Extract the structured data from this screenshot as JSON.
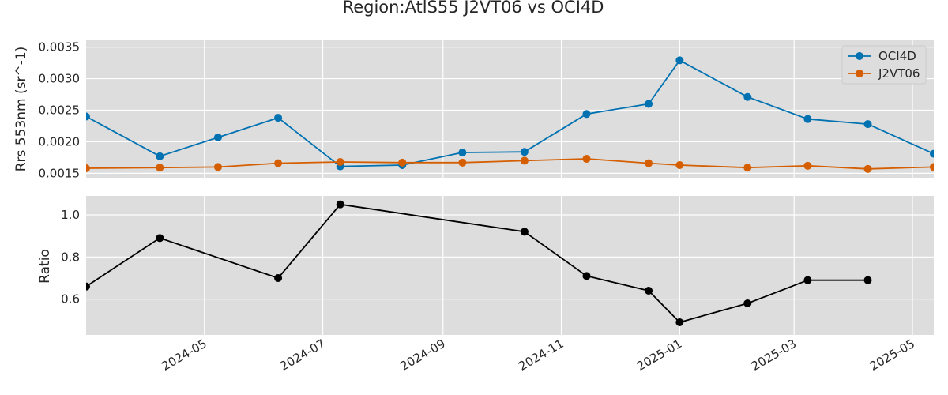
{
  "chart_data": {
    "type": "line",
    "title": "Region:AtlS55 J2VT06 vs OCI4D",
    "x_tick_labels": [
      "2024-05",
      "2024-07",
      "2024-09",
      "2024-11",
      "2025-01",
      "2025-03",
      "2025-05"
    ],
    "x_ticks": [
      "2024-05-01",
      "2024-07-01",
      "2024-09-01",
      "2024-11-01",
      "2025-01-01",
      "2025-03-01",
      "2025-05-01"
    ],
    "xlim": [
      "2024-03-01",
      "2025-05-12"
    ],
    "grid": true,
    "panels": [
      {
        "ylabel": "Rrs 553nm (sr^-1)",
        "ylim": [
          0.00143,
          0.00362
        ],
        "y_ticks": [
          0.0015,
          0.002,
          0.0025,
          0.003,
          0.0035
        ],
        "y_tick_labels": [
          "0.0015",
          "0.0020",
          "0.0025",
          "0.0030",
          "0.0035"
        ],
        "legend_position": "top-right",
        "series": [
          {
            "name": "OCI4D",
            "color": "#0072b2",
            "x": [
              "2024-03-01",
              "2024-04-08",
              "2024-05-08",
              "2024-06-08",
              "2024-07-10",
              "2024-08-11",
              "2024-09-11",
              "2024-10-13",
              "2024-11-14",
              "2024-12-16",
              "2025-01-01",
              "2025-02-05",
              "2025-03-08",
              "2025-04-08",
              "2025-05-12"
            ],
            "values": [
              0.0024,
              0.00177,
              0.00207,
              0.00238,
              0.00161,
              0.00163,
              0.00183,
              0.00184,
              0.00244,
              0.0026,
              0.00329,
              0.00271,
              0.00236,
              0.00228,
              0.00181
            ]
          },
          {
            "name": "J2VT06",
            "color": "#d55e00",
            "x": [
              "2024-03-01",
              "2024-04-08",
              "2024-05-08",
              "2024-06-08",
              "2024-07-10",
              "2024-08-11",
              "2024-09-11",
              "2024-10-13",
              "2024-11-14",
              "2024-12-16",
              "2025-01-01",
              "2025-02-05",
              "2025-03-08",
              "2025-04-08",
              "2025-05-12"
            ],
            "values": [
              0.00158,
              0.00159,
              0.0016,
              0.00166,
              0.00168,
              0.00167,
              0.00167,
              0.0017,
              0.00173,
              0.00166,
              0.00163,
              0.00159,
              0.00162,
              0.00157,
              0.0016
            ]
          }
        ]
      },
      {
        "ylabel": "Ratio",
        "ylim": [
          0.43,
          1.09
        ],
        "y_ticks": [
          0.6,
          0.8,
          1.0
        ],
        "y_tick_labels": [
          "0.6",
          "0.8",
          "1.0"
        ],
        "series": [
          {
            "color": "#000000",
            "x": [
              "2024-03-01",
              "2024-04-08",
              "2024-06-08",
              "2024-07-10",
              "2024-10-13",
              "2024-11-14",
              "2024-12-16",
              "2025-01-01",
              "2025-02-05",
              "2025-03-08",
              "2025-04-08"
            ],
            "values": [
              0.66,
              0.89,
              0.7,
              1.05,
              0.92,
              0.71,
              0.64,
              0.49,
              0.58,
              0.69,
              0.69
            ]
          }
        ]
      }
    ]
  },
  "colors": {
    "plot_background": "#dddddd",
    "grid": "#ffffff",
    "text": "#262626"
  }
}
